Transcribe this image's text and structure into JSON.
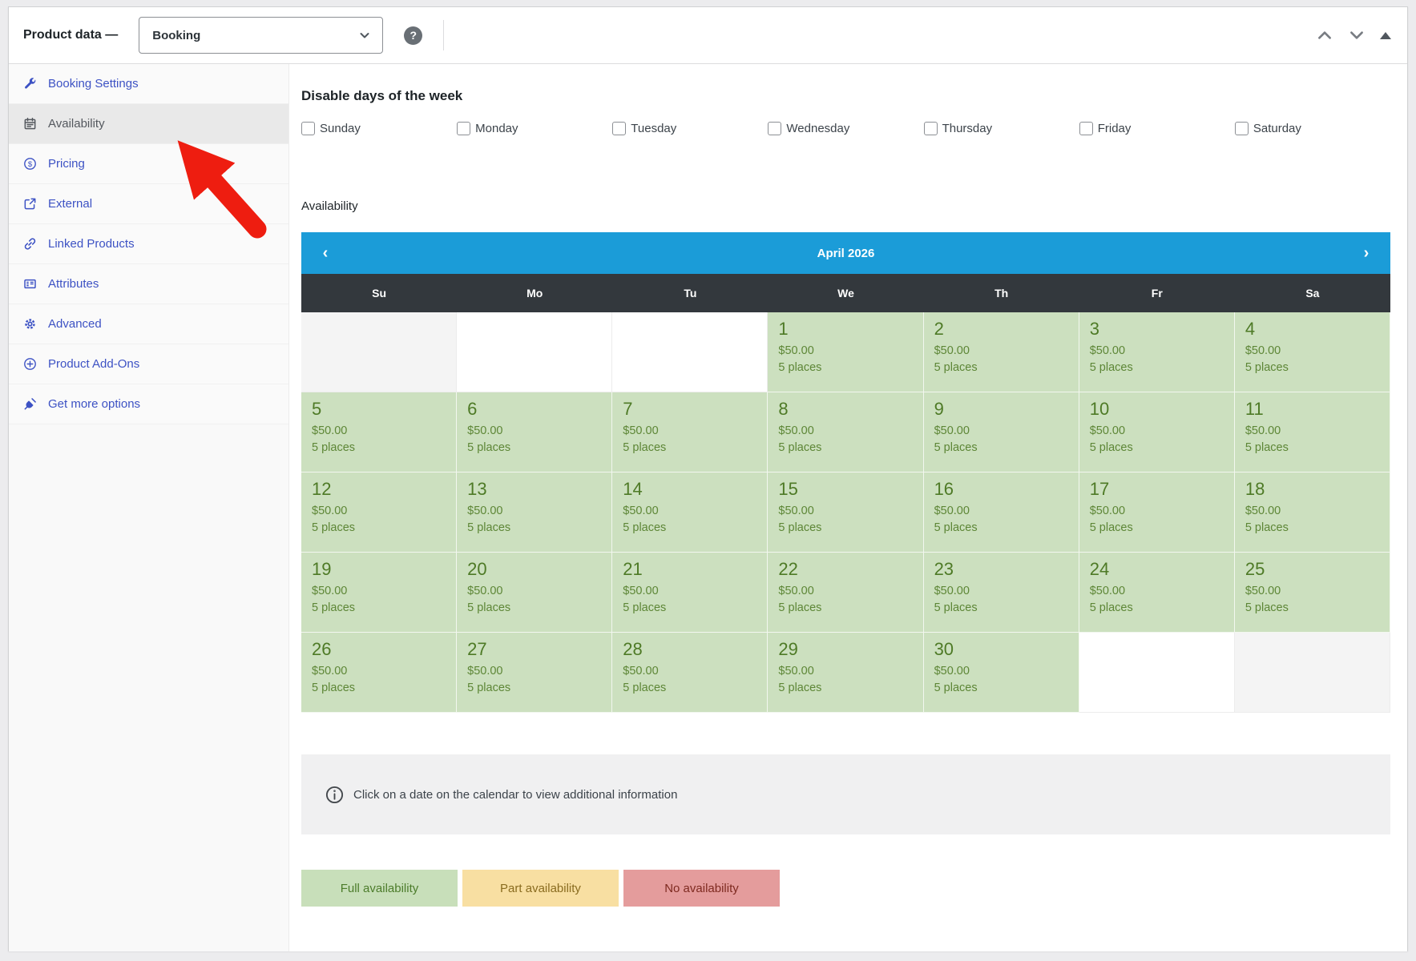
{
  "header": {
    "title": "Product data —",
    "product_type_value": "Booking",
    "help_label": "?"
  },
  "sidebar": {
    "items": [
      {
        "label": "Booking Settings",
        "icon": "wrench",
        "active": false
      },
      {
        "label": "Availability",
        "icon": "calendar",
        "active": true
      },
      {
        "label": "Pricing",
        "icon": "dollar",
        "active": false
      },
      {
        "label": "External",
        "icon": "external",
        "active": false
      },
      {
        "label": "Linked Products",
        "icon": "link",
        "active": false
      },
      {
        "label": "Attributes",
        "icon": "attributes",
        "active": false
      },
      {
        "label": "Advanced",
        "icon": "gear",
        "active": false
      },
      {
        "label": "Product Add-Ons",
        "icon": "plus-circle",
        "active": false
      },
      {
        "label": "Get more options",
        "icon": "plug",
        "active": false
      }
    ]
  },
  "main": {
    "disable_days": {
      "title": "Disable days of the week",
      "days": [
        {
          "label": "Sunday",
          "checked": false
        },
        {
          "label": "Monday",
          "checked": false
        },
        {
          "label": "Tuesday",
          "checked": false
        },
        {
          "label": "Wednesday",
          "checked": false
        },
        {
          "label": "Thursday",
          "checked": false
        },
        {
          "label": "Friday",
          "checked": false
        },
        {
          "label": "Saturday",
          "checked": false
        }
      ]
    },
    "availability_label": "Availability",
    "calendar": {
      "month_label": "April 2026",
      "prev_label": "‹",
      "next_label": "›",
      "weekdays": [
        "Su",
        "Mo",
        "Tu",
        "We",
        "Th",
        "Fr",
        "Sa"
      ],
      "price": "$50.00",
      "places": "5 places",
      "weeks": [
        [
          {
            "t": "gray"
          },
          {
            "t": "white"
          },
          {
            "t": "white"
          },
          {
            "d": 1
          },
          {
            "d": 2
          },
          {
            "d": 3
          },
          {
            "d": 4
          }
        ],
        [
          {
            "d": 5
          },
          {
            "d": 6
          },
          {
            "d": 7
          },
          {
            "d": 8
          },
          {
            "d": 9
          },
          {
            "d": 10
          },
          {
            "d": 11
          }
        ],
        [
          {
            "d": 12
          },
          {
            "d": 13
          },
          {
            "d": 14
          },
          {
            "d": 15
          },
          {
            "d": 16
          },
          {
            "d": 17
          },
          {
            "d": 18
          }
        ],
        [
          {
            "d": 19
          },
          {
            "d": 20
          },
          {
            "d": 21
          },
          {
            "d": 22
          },
          {
            "d": 23
          },
          {
            "d": 24
          },
          {
            "d": 25
          }
        ],
        [
          {
            "d": 26
          },
          {
            "d": 27
          },
          {
            "d": 28
          },
          {
            "d": 29
          },
          {
            "d": 30
          },
          {
            "t": "white"
          },
          {
            "t": "gray"
          }
        ]
      ]
    },
    "info": {
      "text": "Click on a date on the calendar to view additional information"
    },
    "legend": [
      {
        "label": "Full availability",
        "bg": "#c8dfba",
        "fg": "#4c7c2b"
      },
      {
        "label": "Part availability",
        "bg": "#f8dfa2",
        "fg": "#8a6c20"
      },
      {
        "label": "No availability",
        "bg": "#e49c9c",
        "fg": "#7e2a20"
      }
    ]
  },
  "colors": {
    "calendar_header_blue": "#1b9cd8",
    "weekday_bar_dark": "#33383d",
    "available_cell_green": "#cce0bf",
    "sidebar_link_blue": "#3d52c4",
    "arrow_red": "#ee1d10"
  }
}
